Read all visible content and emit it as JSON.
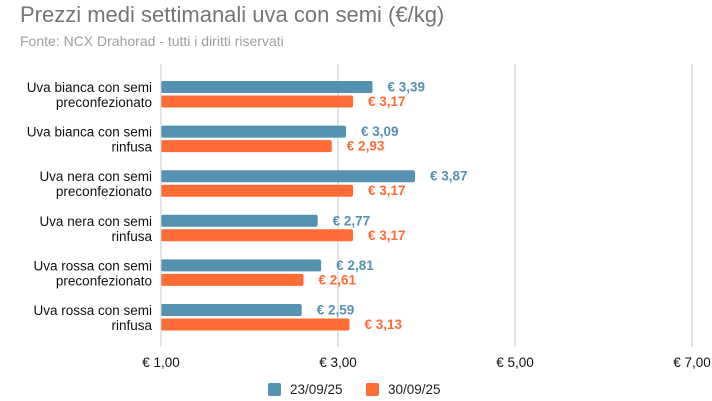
{
  "chart_data": {
    "type": "bar",
    "orientation": "horizontal",
    "title": "Prezzi medi settimanali uva con semi (€/kg)",
    "subtitle": "Fonte: NCX Drahorad - tutti i diritti riservati",
    "categories": [
      [
        "Uva bianca con semi",
        "preconfezionato"
      ],
      [
        "Uva bianca con semi",
        "rinfusa"
      ],
      [
        "Uva nera con semi",
        "preconfezionato"
      ],
      [
        "Uva nera con semi",
        "rinfusa"
      ],
      [
        "Uva rossa con semi",
        "preconfezionato"
      ],
      [
        "Uva rossa con semi",
        "rinfusa"
      ]
    ],
    "series": [
      {
        "name": "23/09/25",
        "color": "#5591b0",
        "values": [
          3.39,
          3.09,
          3.87,
          2.77,
          2.81,
          2.59
        ],
        "labels": [
          "€ 3,39",
          "€ 3,09",
          "€ 3,87",
          "€ 2,77",
          "€ 2,81",
          "€ 2,59"
        ]
      },
      {
        "name": "30/09/25",
        "color": "#ff6b35",
        "values": [
          3.17,
          2.93,
          3.17,
          3.17,
          2.61,
          3.13
        ],
        "labels": [
          "€ 3,17",
          "€ 2,93",
          "€ 3,17",
          "€ 3,17",
          "€ 2,61",
          "€ 3,13"
        ]
      }
    ],
    "xlim": [
      1,
      7
    ],
    "xticks": [
      1,
      3,
      5,
      7
    ],
    "xtick_labels": [
      "€ 1,00",
      "€ 3,00",
      "€ 5,00",
      "€ 7,00"
    ],
    "grid": true,
    "legend": "bottom"
  }
}
